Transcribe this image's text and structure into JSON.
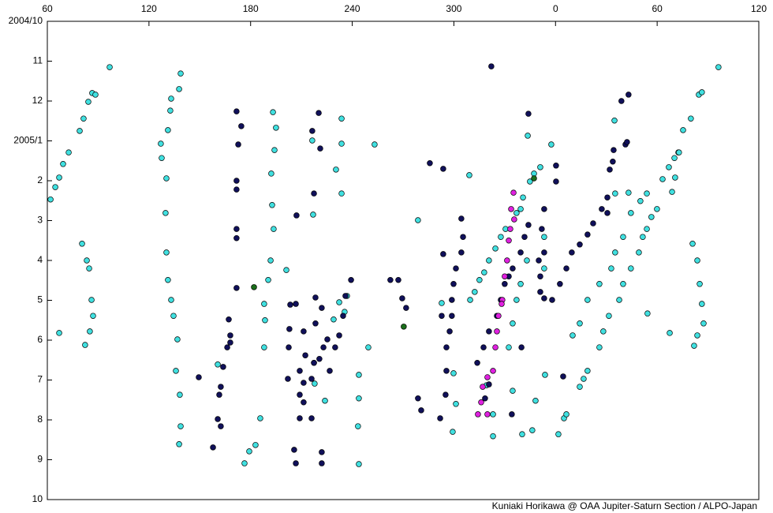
{
  "chart_data": {
    "type": "scatter",
    "xlim": [
      60,
      480
    ],
    "xticks": [
      60,
      120,
      180,
      240,
      300,
      {
        "value": 360,
        "label": "0"
      },
      {
        "value": 420,
        "label": "60"
      },
      {
        "value": 480,
        "label": "120"
      }
    ],
    "ylim": [
      0,
      12
    ],
    "y_inverted": true,
    "yticks": [
      {
        "value": 0,
        "label": "2004/10"
      },
      {
        "value": 1,
        "label": "11"
      },
      {
        "value": 2,
        "label": "12"
      },
      {
        "value": 3,
        "label": "2005/1"
      },
      {
        "value": 4,
        "label": "2"
      },
      {
        "value": 5,
        "label": "3"
      },
      {
        "value": 6,
        "label": "4"
      },
      {
        "value": 7,
        "label": "5"
      },
      {
        "value": 8,
        "label": "6"
      },
      {
        "value": 9,
        "label": "7"
      },
      {
        "value": 10,
        "label": "8"
      },
      {
        "value": 11,
        "label": "9"
      },
      {
        "value": 12,
        "label": "10"
      }
    ],
    "credit": "Kuniaki Horikawa @ OAA Jupiter-Saturn Section / ALPO-Japan",
    "series": [
      {
        "color": "#40e0e0",
        "x": [
          61.9,
          64.7,
          67.0,
          69.3,
          72.6,
          79.1,
          81.4,
          84.2,
          86.5,
          88.4,
          96.8,
          428.8,
          430.6,
          432.5,
          435.3,
          439.9,
          444.6,
          446.4,
          456.2,
          80.5,
          83.3,
          84.7,
          86.1,
          87.0,
          85.1,
          82.3,
          67.0,
          440.9,
          443.7,
          445.1,
          446.4,
          447.4,
          443.7,
          441.8,
          427.4,
          138.7,
          137.8,
          133.1,
          132.6,
          131.2,
          127.0,
          127.5,
          130.3,
          129.8,
          130.3,
          131.2,
          133.1,
          134.5,
          136.8,
          135.9,
          138.2,
          138.7,
          137.8,
          193.2,
          195.0,
          194.1,
          192.2,
          192.7,
          193.6,
          191.8,
          190.4,
          188.0,
          188.5,
          188.0,
          185.7,
          176.4,
          179.2,
          182.9,
          160.6,
          216.4,
          233.7,
          233.7,
          253.2,
          230.4,
          233.7,
          216.9,
          201.1,
          229.0,
          232.3,
          235.5,
          236.9,
          243.9,
          243.9,
          243.4,
          243.9,
          249.5,
          223.9,
          217.8,
          217.4,
          278.8,
          292.8,
          299.8,
          301.2,
          299.3,
          309.1,
          309.6,
          312.3,
          315.1,
          317.9,
          320.7,
          324.5,
          327.7,
          330.5,
          337.0,
          339.4,
          344.9,
          347.3,
          351.0,
          357.5,
          343.6,
          340.8,
          353.3,
          353.3,
          343.1,
          339.4,
          337.0,
          334.7,
          332.4,
          319.3,
          323.1,
          323.1,
          340.3,
          346.3,
          348.2,
          334.7,
          353.8,
          361.7,
          365.0,
          366.4,
          370.1,
          374.3,
          378.9,
          385.9,
          392.9,
          395.2,
          399.9,
          404.5,
          410.1,
          413.9,
          423.2,
          426.9,
          430.2,
          432.9,
          403.1,
          395.2,
          394.8,
          376.6,
          378.9,
          374.3,
          385.9,
          388.2,
          391.5,
          397.6,
          399.9,
          404.5,
          409.2,
          411.5,
          413.9,
          416.6,
          419.9,
          414.3
        ],
        "values": [
          4.47,
          4.16,
          3.92,
          3.58,
          3.29,
          2.75,
          2.44,
          2.02,
          1.8,
          1.84,
          1.15,
          4.28,
          3.92,
          3.29,
          2.73,
          2.44,
          1.84,
          1.78,
          1.15,
          5.58,
          6.0,
          6.2,
          6.99,
          7.39,
          7.78,
          8.12,
          7.82,
          5.58,
          6.0,
          6.59,
          7.09,
          7.58,
          7.88,
          8.14,
          7.82,
          1.31,
          1.7,
          1.94,
          2.24,
          2.73,
          3.07,
          3.43,
          3.94,
          4.81,
          5.8,
          6.49,
          6.99,
          7.39,
          7.98,
          8.77,
          9.37,
          10.16,
          10.61,
          2.28,
          2.67,
          3.23,
          3.82,
          4.61,
          5.21,
          6.0,
          6.49,
          7.09,
          7.5,
          8.18,
          9.96,
          11.09,
          10.79,
          10.63,
          8.61,
          2.99,
          2.44,
          3.07,
          3.09,
          3.72,
          4.32,
          4.85,
          6.24,
          7.48,
          7.05,
          7.29,
          6.89,
          8.87,
          9.46,
          10.16,
          11.11,
          8.18,
          9.52,
          9.09,
          8.57,
          4.99,
          7.07,
          8.83,
          9.6,
          10.3,
          3.86,
          6.99,
          6.79,
          6.49,
          6.3,
          6.0,
          5.7,
          5.41,
          5.21,
          4.81,
          4.71,
          4.02,
          3.82,
          3.66,
          3.09,
          2.87,
          4.42,
          5.41,
          6.2,
          6.0,
          6.59,
          6.99,
          7.58,
          8.18,
          9.13,
          9.86,
          10.41,
          10.36,
          10.26,
          9.52,
          9.27,
          8.87,
          10.36,
          9.96,
          9.86,
          7.88,
          7.58,
          6.99,
          6.59,
          6.2,
          5.8,
          5.41,
          4.81,
          4.51,
          4.32,
          3.96,
          3.66,
          3.43,
          3.29,
          4.3,
          4.32,
          2.49,
          8.97,
          8.77,
          9.17,
          8.18,
          7.78,
          7.39,
          6.99,
          6.59,
          6.2,
          5.8,
          5.41,
          5.21,
          4.91,
          4.71,
          7.33
        ]
      },
      {
        "color": "#10105a",
        "x": [
          322.1,
          344.0,
          360.3,
          401.3,
          398.9,
          403.1,
          402.2,
          392.0,
          393.8,
          394.3,
          387.3,
          390.6,
          390.6,
          382.2,
          378.9,
          374.3,
          369.6,
          366.4,
          362.6,
          358.0,
          353.3,
          351.0,
          351.0,
          350.1,
          353.3,
          351.9,
          353.3,
          360.3,
          344.0,
          341.7,
          339.4,
          334.7,
          332.4,
          330.0,
          327.7,
          325.4,
          320.7,
          317.5,
          313.8,
          304.4,
          305.4,
          304.4,
          301.2,
          299.8,
          298.8,
          298.8,
          297.5,
          295.6,
          293.7,
          292.8,
          295.6,
          295.1,
          291.9,
          285.8,
          293.7,
          280.7,
          278.8,
          269.5,
          271.8,
          267.2,
          262.5,
          239.3,
          236.0,
          234.6,
          232.3,
          229.9,
          226.7,
          222.0,
          218.3,
          218.3,
          217.4,
          216.0,
          206.7,
          211.3,
          212.3,
          209.0,
          209.0,
          209.0,
          211.3,
          205.7,
          216.0,
          211.3,
          206.7,
          222.0,
          222.0,
          220.2,
          216.4,
          221.1,
          217.4,
          207.1,
          171.7,
          174.5,
          172.7,
          171.7,
          171.7,
          171.7,
          171.7,
          167.1,
          166.2,
          163.8,
          162.4,
          161.5,
          160.6,
          157.8,
          149.4,
          162.4,
          168.0,
          168.0,
          171.7,
          203.4,
          202.9,
          202.5,
          202.0,
          220.6,
          223.0,
          225.3,
          320.7,
          334.2,
          318.4,
          364.5,
          339.9
        ],
        "values": [
          1.13,
          2.32,
          3.62,
          3.09,
          2.0,
          1.84,
          3.03,
          3.72,
          3.52,
          3.23,
          4.71,
          4.42,
          4.81,
          5.07,
          5.35,
          5.6,
          5.8,
          6.2,
          6.59,
          6.99,
          6.95,
          6.79,
          6.4,
          6.0,
          5.8,
          5.21,
          4.71,
          4.02,
          5.11,
          5.41,
          5.8,
          6.2,
          6.4,
          6.59,
          6.99,
          7.39,
          7.78,
          8.18,
          8.57,
          4.95,
          5.41,
          5.8,
          6.2,
          6.59,
          6.99,
          7.39,
          7.78,
          8.18,
          5.84,
          7.39,
          8.77,
          9.37,
          9.96,
          3.56,
          3.7,
          9.76,
          9.46,
          6.95,
          7.19,
          6.49,
          6.49,
          6.49,
          6.89,
          7.39,
          7.88,
          8.18,
          8.77,
          7.19,
          6.93,
          7.58,
          8.57,
          8.97,
          7.09,
          7.78,
          8.38,
          8.77,
          9.37,
          9.96,
          9.56,
          10.75,
          9.96,
          9.07,
          11.09,
          10.81,
          11.09,
          2.3,
          2.75,
          3.19,
          4.32,
          4.87,
          2.26,
          2.63,
          3.09,
          4.0,
          4.22,
          5.21,
          5.44,
          7.48,
          8.18,
          8.67,
          9.17,
          9.37,
          9.98,
          10.69,
          8.93,
          10.16,
          8.06,
          7.88,
          6.69,
          7.11,
          7.72,
          8.18,
          8.97,
          8.47,
          8.18,
          7.98,
          9.11,
          9.86,
          9.46,
          8.91,
          8.18
        ]
      },
      {
        "color": "#e020e0",
        "x": [
          335.2,
          333.8,
          335.6,
          333.3,
          332.4,
          331.4,
          330.0,
          328.6,
          328.2,
          326.3,
          325.4,
          324.5,
          323.1,
          319.8,
          317.0,
          316.1,
          314.2,
          319.8
        ],
        "values": [
          4.3,
          4.71,
          4.97,
          5.21,
          5.5,
          6.0,
          6.4,
          6.99,
          7.09,
          7.39,
          7.78,
          8.18,
          8.77,
          8.93,
          9.17,
          9.56,
          9.86,
          9.86
        ]
      },
      {
        "color": "#1a6e1a",
        "x": [
          182.0,
          270.4,
          347.3
        ],
        "values": [
          6.67,
          7.66,
          3.94
        ]
      }
    ]
  }
}
